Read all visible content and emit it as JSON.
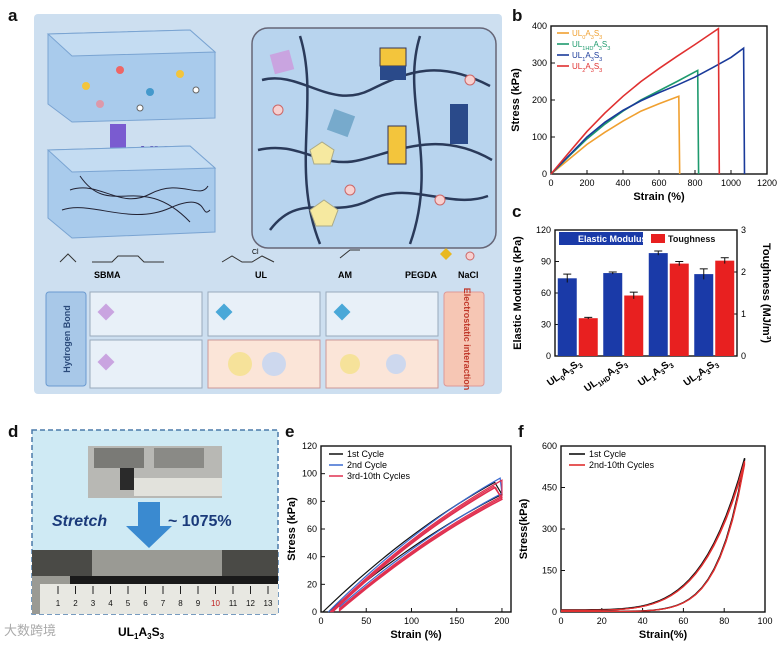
{
  "panels": {
    "a": "a",
    "b": "b",
    "c": "c",
    "d": "d",
    "e": "e",
    "f": "f"
  },
  "panel_a": {
    "uv_label": "UV",
    "legend": [
      "SBMA",
      "UL",
      "AM",
      "PEGDA",
      "NaCl"
    ],
    "ul_chloride": "Cl",
    "hbond_label": "Hydrogen Bond",
    "electrostatic_label": "Electrostatic interaction",
    "colors": {
      "bg": "#c9ddee",
      "box": "#a9c9ea",
      "frame": "#7aa9d6",
      "hbond_box": "#a8c8e8",
      "elec_box": "#f6c6b4"
    }
  },
  "chart_data": [
    {
      "id": "b",
      "type": "line",
      "xlabel": "Strain (%)",
      "ylabel": "Stress (kPa)",
      "xlim": [
        0,
        1200
      ],
      "ylim": [
        0,
        400
      ],
      "xticks": [
        0,
        200,
        400,
        600,
        800,
        1000,
        1200
      ],
      "yticks": [
        0,
        100,
        200,
        300,
        400
      ],
      "legend_position": "top-left",
      "series": [
        {
          "name": "UL0A3S3",
          "name_main": "UL",
          "sub1": "0",
          "mid": "A",
          "sub2": "3",
          "tail": "S",
          "sub3": "3",
          "color": "#f0a030",
          "x": [
            0,
            100,
            200,
            300,
            400,
            500,
            600,
            710,
            715
          ],
          "y": [
            0,
            40,
            80,
            113,
            143,
            170,
            190,
            210,
            0
          ]
        },
        {
          "name": "UL1HDA3S3",
          "name_main": "UL",
          "sub1": "1HD",
          "mid": "A",
          "sub2": "3",
          "tail": "S",
          "sub3": "3",
          "color": "#1e9a6e",
          "x": [
            0,
            100,
            200,
            300,
            400,
            500,
            600,
            700,
            815,
            820
          ],
          "y": [
            0,
            48,
            95,
            135,
            170,
            200,
            225,
            250,
            280,
            0
          ]
        },
        {
          "name": "UL1A3S3",
          "name_main": "UL",
          "sub1": "1",
          "mid": "A",
          "sub2": "3",
          "tail": "S",
          "sub3": "3",
          "color": "#1a3a9a",
          "x": [
            0,
            100,
            200,
            300,
            400,
            500,
            600,
            700,
            800,
            900,
            1000,
            1070,
            1075
          ],
          "y": [
            0,
            50,
            100,
            140,
            172,
            198,
            220,
            240,
            262,
            288,
            315,
            340,
            0
          ]
        },
        {
          "name": "UL2A3S3",
          "name_main": "UL",
          "sub1": "2",
          "mid": "A",
          "sub2": "3",
          "tail": "S",
          "sub3": "3",
          "color": "#e03030",
          "x": [
            0,
            100,
            200,
            300,
            400,
            500,
            600,
            700,
            800,
            930,
            935
          ],
          "y": [
            0,
            58,
            115,
            165,
            210,
            250,
            285,
            318,
            350,
            393,
            0
          ]
        }
      ]
    },
    {
      "id": "c",
      "type": "bar",
      "ylabel": "Elastic Modulus (kPa)",
      "y2label": "Toughness (MJ/m³)",
      "ylim": [
        0,
        120
      ],
      "y2lim": [
        0,
        3
      ],
      "yticks": [
        0,
        30,
        60,
        90,
        120
      ],
      "y2ticks": [
        0,
        1,
        2,
        3
      ],
      "legend_position": "top",
      "categories": [
        {
          "main": "UL",
          "sub1": "0",
          "mid": "A",
          "sub2": "3",
          "tail": "S",
          "sub3": "3"
        },
        {
          "main": "UL",
          "sub1": "1HD",
          "mid": "A",
          "sub2": "3",
          "tail": "S",
          "sub3": "3"
        },
        {
          "main": "UL",
          "sub1": "1",
          "mid": "A",
          "sub2": "3",
          "tail": "S",
          "sub3": "3"
        },
        {
          "main": "UL",
          "sub1": "2",
          "mid": "A",
          "sub2": "3",
          "tail": "S",
          "sub3": "3"
        }
      ],
      "series": [
        {
          "name": "Elastic Modulus",
          "color": "#1a3aa8",
          "values": [
            74,
            79,
            98,
            78
          ],
          "errors": [
            4,
            1,
            2,
            5
          ]
        },
        {
          "name": "Toughness",
          "color": "#e82020",
          "values": [
            0.9,
            1.44,
            2.2,
            2.27
          ],
          "errors": [
            0.02,
            0.08,
            0.05,
            0.07
          ]
        }
      ]
    },
    {
      "id": "e",
      "type": "line",
      "xlabel": "Strain (%)",
      "ylabel": "Stress (kPa)",
      "xlim": [
        0,
        210
      ],
      "ylim": [
        0,
        120
      ],
      "xticks": [
        0,
        50,
        100,
        150,
        200
      ],
      "yticks": [
        0,
        20,
        40,
        60,
        80,
        100,
        120
      ],
      "legend_position": "top-left",
      "series": [
        {
          "name": "1st Cycle",
          "color": "#111111"
        },
        {
          "name": "2nd Cycle",
          "color": "#3a6ad0"
        },
        {
          "name": "3rd-10th Cycles",
          "color": "#e03050"
        }
      ]
    },
    {
      "id": "f",
      "type": "line",
      "xlabel": "Strain(%)",
      "ylabel": "Stress(kPa)",
      "xlim": [
        0,
        100
      ],
      "ylim": [
        0,
        600
      ],
      "xticks": [
        0,
        20,
        40,
        60,
        80,
        100
      ],
      "yticks": [
        0,
        150,
        300,
        450,
        600
      ],
      "legend_position": "top-left",
      "series": [
        {
          "name": "1st Cycle",
          "color": "#111111"
        },
        {
          "name": "2nd-10th Cycles",
          "color": "#e03030"
        }
      ]
    }
  ],
  "panel_d": {
    "stretch_label": "Stretch",
    "value_label": "~ 1075%",
    "sample_label": {
      "main": "UL",
      "sub1": "1",
      "mid": "A",
      "sub2": "3",
      "tail": "S",
      "sub3": "3"
    },
    "ruler_ticks": [
      "1",
      "2",
      "3",
      "4",
      "5",
      "6",
      "7",
      "8",
      "9",
      "10",
      "11",
      "12",
      "13"
    ]
  },
  "watermark": "大数跨境"
}
